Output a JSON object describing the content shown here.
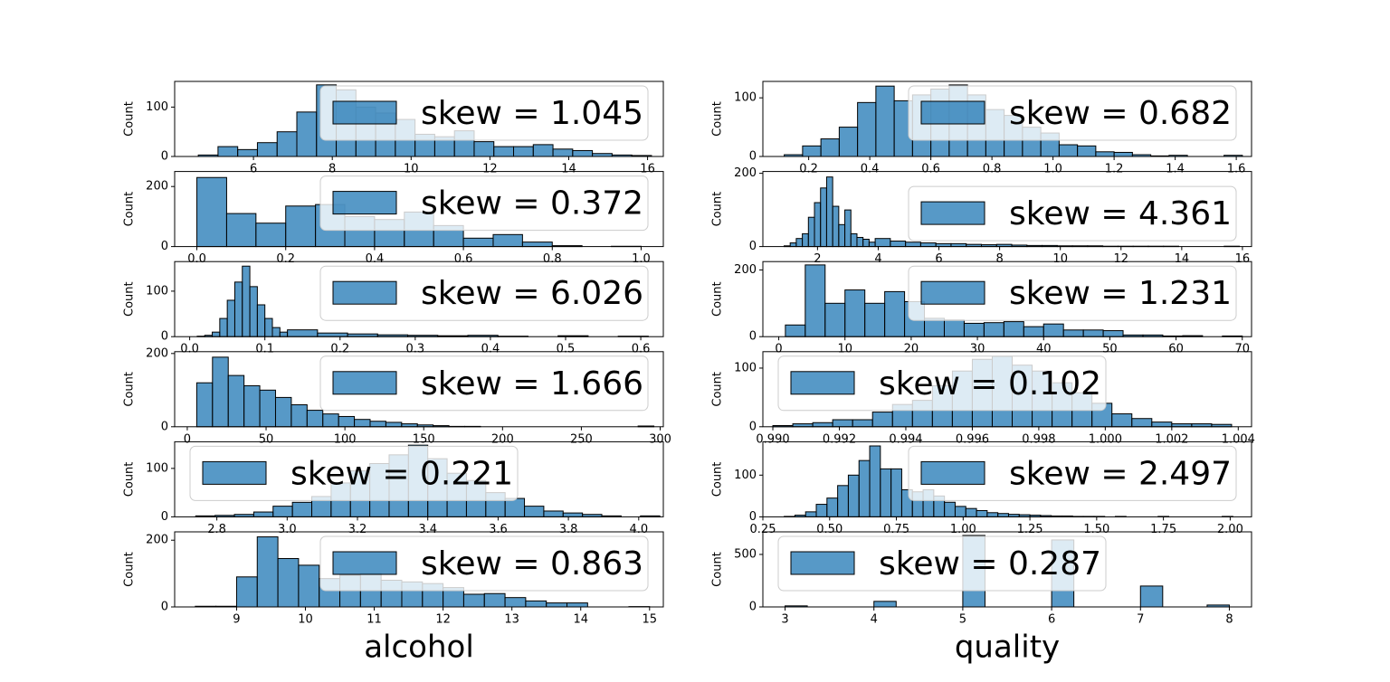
{
  "chart_data": [
    {
      "type": "histogram",
      "ylabel": "Count",
      "label": "skew = 1.045",
      "legend_loc": "upper right",
      "color": "#1f77b4",
      "bins": [
        4.6,
        5.1,
        5.6,
        6.1,
        6.6,
        7.1,
        7.6,
        8.1,
        8.6,
        9.1,
        9.6,
        10.1,
        10.6,
        11.1,
        11.6,
        12.1,
        12.6,
        13.1,
        13.6,
        14.1,
        14.6,
        15.1,
        15.6,
        16.1
      ],
      "counts": [
        3,
        20,
        14,
        28,
        50,
        90,
        145,
        135,
        100,
        88,
        75,
        45,
        40,
        52,
        30,
        20,
        20,
        24,
        15,
        12,
        6,
        3,
        2
      ],
      "xlim": [
        4.0,
        16.4
      ],
      "xticks": [
        6,
        8,
        10,
        12,
        14,
        16
      ],
      "ylim": [
        0,
        152
      ],
      "yticks": [
        0,
        100
      ]
    },
    {
      "type": "histogram",
      "ylabel": "Count",
      "label": "skew = 0.372",
      "legend_loc": "upper right",
      "color": "#1f77b4",
      "bins": [
        0,
        0.067,
        0.133,
        0.2,
        0.267,
        0.333,
        0.4,
        0.467,
        0.533,
        0.6,
        0.667,
        0.733,
        0.8,
        0.867,
        0.933,
        1.0
      ],
      "counts": [
        230,
        110,
        78,
        135,
        140,
        100,
        90,
        115,
        70,
        28,
        40,
        15,
        3,
        0,
        1
      ],
      "xlim": [
        -0.05,
        1.05
      ],
      "xticks": [
        {
          "value": 0,
          "label": "0.0"
        },
        0.2,
        0.4,
        0.6,
        0.8,
        {
          "value": 1,
          "label": "1.0"
        }
      ],
      "ylim": [
        0,
        250
      ],
      "yticks": [
        0,
        200
      ]
    },
    {
      "type": "histogram",
      "ylabel": "Count",
      "label": "skew = 6.026",
      "legend_loc": "upper right",
      "color": "#1f77b4",
      "bins": [
        0.01,
        0.02,
        0.03,
        0.04,
        0.05,
        0.06,
        0.07,
        0.08,
        0.09,
        0.1,
        0.11,
        0.12,
        0.13,
        0.17,
        0.21,
        0.25,
        0.29,
        0.33,
        0.37,
        0.41,
        0.45,
        0.49,
        0.53,
        0.57,
        0.61
      ],
      "counts": [
        1,
        3,
        10,
        40,
        80,
        120,
        155,
        110,
        70,
        40,
        20,
        10,
        15,
        8,
        6,
        4,
        3,
        2,
        3,
        1,
        0,
        2,
        0,
        1
      ],
      "xlim": [
        -0.02,
        0.63
      ],
      "xticks": [
        {
          "value": 0,
          "label": "0.0"
        },
        0.1,
        0.2,
        0.3,
        0.4,
        0.5,
        0.6
      ],
      "ylim": [
        0,
        165
      ],
      "yticks": [
        0,
        100
      ]
    },
    {
      "type": "histogram",
      "ylabel": "Count",
      "label": "skew = 1.666",
      "legend_loc": "upper right",
      "color": "#1f77b4",
      "bins": [
        6,
        16,
        26,
        36,
        46,
        56,
        66,
        76,
        86,
        96,
        106,
        116,
        126,
        136,
        146,
        156,
        166,
        176,
        186,
        196,
        206,
        216,
        226,
        236,
        246,
        256,
        266,
        276,
        286,
        296
      ],
      "counts": [
        120,
        190,
        140,
        112,
        100,
        80,
        60,
        45,
        35,
        28,
        20,
        15,
        12,
        8,
        5,
        3,
        1,
        1,
        0,
        0,
        0,
        0,
        0,
        0,
        0,
        0,
        0,
        0,
        2
      ],
      "xlim": [
        -8,
        302
      ],
      "xticks": [
        0,
        50,
        100,
        150,
        200,
        250,
        300
      ],
      "ylim": [
        0,
        205
      ],
      "yticks": [
        0,
        200
      ]
    },
    {
      "type": "histogram",
      "ylabel": "Count",
      "label": "skew = 0.221",
      "legend_loc": "upper left",
      "color": "#1f77b4",
      "bins": [
        2.74,
        2.795,
        2.85,
        2.905,
        2.96,
        3.015,
        3.07,
        3.125,
        3.18,
        3.235,
        3.29,
        3.345,
        3.4,
        3.455,
        3.51,
        3.565,
        3.62,
        3.675,
        3.73,
        3.785,
        3.84,
        3.895,
        3.95,
        4.005,
        4.06
      ],
      "counts": [
        2,
        3,
        5,
        10,
        22,
        30,
        42,
        70,
        95,
        110,
        128,
        148,
        120,
        90,
        75,
        50,
        38,
        22,
        12,
        8,
        5,
        2,
        0,
        2
      ],
      "xlim": [
        2.68,
        4.07
      ],
      "xticks": [
        2.8,
        {
          "value": 3,
          "label": "3.0"
        },
        3.2,
        3.4,
        3.6,
        3.8,
        {
          "value": 4,
          "label": "4.0"
        }
      ],
      "ylim": [
        0,
        155
      ],
      "yticks": [
        0,
        100
      ]
    },
    {
      "type": "histogram",
      "ylabel": "Count",
      "label": "skew = 0.863",
      "legend_loc": "upper right",
      "color": "#1f77b4",
      "xlabel": "alcohol",
      "bins": [
        8.4,
        8.7,
        9.0,
        9.3,
        9.6,
        9.9,
        10.2,
        10.5,
        10.8,
        11.1,
        11.4,
        11.7,
        12.0,
        12.3,
        12.6,
        12.9,
        13.2,
        13.5,
        13.8,
        14.1,
        14.4,
        14.7,
        15.0
      ],
      "counts": [
        2,
        2,
        90,
        210,
        145,
        125,
        85,
        95,
        100,
        80,
        75,
        70,
        58,
        38,
        40,
        28,
        18,
        12,
        12,
        0,
        0,
        1
      ],
      "xlim": [
        8.1,
        15.2
      ],
      "xticks": [
        9,
        10,
        11,
        12,
        13,
        14,
        15
      ],
      "ylim": [
        0,
        225
      ],
      "yticks": [
        0,
        200
      ]
    },
    {
      "type": "histogram",
      "ylabel": "Count",
      "label": "skew = 0.682",
      "legend_loc": "upper right",
      "color": "#1f77b4",
      "bins": [
        0.12,
        0.18,
        0.24,
        0.3,
        0.36,
        0.42,
        0.48,
        0.54,
        0.6,
        0.66,
        0.72,
        0.78,
        0.84,
        0.9,
        0.96,
        1.02,
        1.08,
        1.14,
        1.2,
        1.26,
        1.32,
        1.38,
        1.44,
        1.5,
        1.56,
        1.62
      ],
      "counts": [
        3,
        18,
        30,
        50,
        92,
        120,
        95,
        105,
        115,
        122,
        105,
        80,
        70,
        50,
        40,
        20,
        18,
        8,
        7,
        3,
        1,
        2,
        0,
        0,
        2
      ],
      "xlim": [
        0.05,
        1.65
      ],
      "xticks": [
        0.2,
        0.4,
        0.6,
        0.8,
        {
          "value": 1,
          "label": "1.0"
        },
        1.2,
        1.4,
        1.6
      ],
      "ylim": [
        0,
        128
      ],
      "yticks": [
        0,
        100
      ]
    },
    {
      "type": "histogram",
      "ylabel": "Count",
      "label": "skew = 4.361",
      "legend_loc": "right",
      "color": "#1f77b4",
      "bins": [
        0.9,
        1.1,
        1.3,
        1.5,
        1.7,
        1.9,
        2.1,
        2.3,
        2.5,
        2.7,
        2.9,
        3.1,
        3.3,
        3.5,
        3.7,
        3.9,
        4.4,
        4.9,
        5.4,
        5.9,
        6.4,
        6.9,
        7.4,
        7.9,
        8.4,
        8.9,
        9.4,
        9.9,
        10.4,
        10.9,
        11.4,
        11.9,
        12.4,
        12.9,
        13.4,
        13.9,
        14.4,
        14.9,
        15.4,
        15.9
      ],
      "counts": [
        2,
        10,
        22,
        35,
        80,
        120,
        160,
        190,
        110,
        60,
        100,
        35,
        25,
        20,
        12,
        22,
        15,
        12,
        10,
        8,
        8,
        6,
        5,
        6,
        4,
        3,
        3,
        2,
        2,
        2,
        1,
        1,
        1,
        1,
        1,
        0,
        0,
        0,
        1
      ],
      "xlim": [
        0.2,
        16.3
      ],
      "xticks": [
        2,
        4,
        6,
        8,
        10,
        12,
        14,
        16
      ],
      "ylim": [
        0,
        205
      ],
      "yticks": [
        0,
        200
      ]
    },
    {
      "type": "histogram",
      "ylabel": "Count",
      "label": "skew = 1.231",
      "legend_loc": "upper right",
      "color": "#1f77b4",
      "bins": [
        1,
        4,
        7,
        10,
        13,
        16,
        19,
        22,
        25,
        28,
        31,
        34,
        37,
        40,
        43,
        46,
        49,
        52,
        55,
        58,
        61,
        64,
        67,
        70
      ],
      "counts": [
        35,
        215,
        100,
        140,
        100,
        135,
        105,
        55,
        50,
        40,
        42,
        45,
        30,
        38,
        20,
        20,
        18,
        5,
        5,
        2,
        3,
        0,
        2
      ],
      "xlim": [
        -2.4,
        71.4
      ],
      "xticks": [
        0,
        10,
        20,
        30,
        40,
        50,
        60,
        70
      ],
      "ylim": [
        0,
        225
      ],
      "yticks": [
        0,
        200
      ]
    },
    {
      "type": "histogram",
      "ylabel": "Count",
      "label": "skew = 0.102",
      "legend_loc": "upper left",
      "color": "#1f77b4",
      "bins": [
        0.99,
        0.9906,
        0.9912,
        0.9918,
        0.9924,
        0.993,
        0.9936,
        0.9942,
        0.9948,
        0.9954,
        0.996,
        0.9966,
        0.9972,
        0.9978,
        0.9984,
        0.999,
        0.9996,
        1.0002,
        1.0008,
        1.0014,
        1.002,
        1.0026,
        1.0032,
        1.0038
      ],
      "counts": [
        2,
        5,
        7,
        12,
        12,
        25,
        38,
        45,
        70,
        95,
        115,
        120,
        105,
        95,
        75,
        58,
        40,
        22,
        14,
        8,
        5,
        5,
        4
      ],
      "xlim": [
        0.9897,
        1.0044
      ],
      "xticks": [
        {
          "value": 0.99,
          "label": "0.990"
        },
        0.992,
        0.994,
        0.996,
        0.998,
        {
          "value": 1,
          "label": "1.000"
        },
        1.002,
        1.004
      ],
      "ylim": [
        0,
        128
      ],
      "yticks": [
        0,
        100
      ]
    },
    {
      "type": "histogram",
      "ylabel": "Count",
      "label": "skew = 2.497",
      "legend_loc": "upper right",
      "color": "#1f77b4",
      "bins": [
        0.33,
        0.37,
        0.41,
        0.45,
        0.49,
        0.53,
        0.57,
        0.61,
        0.65,
        0.69,
        0.73,
        0.77,
        0.81,
        0.85,
        0.89,
        0.93,
        0.97,
        1.01,
        1.05,
        1.09,
        1.13,
        1.17,
        1.21,
        1.25,
        1.29,
        1.33,
        1.37,
        1.41,
        1.45,
        1.49,
        1.53,
        1.57,
        1.61,
        1.65,
        1.69,
        1.73,
        1.77,
        1.81,
        1.85,
        1.89,
        1.93,
        1.97,
        2.01
      ],
      "counts": [
        1,
        4,
        12,
        30,
        45,
        75,
        100,
        135,
        170,
        115,
        115,
        65,
        60,
        65,
        50,
        35,
        25,
        20,
        15,
        10,
        8,
        6,
        5,
        4,
        3,
        2,
        2,
        1,
        1,
        1,
        0,
        1,
        0,
        0,
        0,
        1,
        0,
        0,
        0,
        0,
        0,
        1
      ],
      "xlim": [
        0.25,
        2.08
      ],
      "xticks": [
        0.25,
        {
          "value": 0.5,
          "label": "0.50"
        },
        0.75,
        {
          "value": 1,
          "label": "1.00"
        },
        1.25,
        {
          "value": 1.5,
          "label": "1.50"
        },
        1.75,
        {
          "value": 2,
          "label": "2.00"
        }
      ],
      "ylim": [
        0,
        180
      ],
      "yticks": [
        0,
        100
      ]
    },
    {
      "type": "histogram",
      "ylabel": "Count",
      "label": "skew = 0.287",
      "legend_loc": "upper left",
      "color": "#1f77b4",
      "xlabel": "quality",
      "bins": [
        3,
        3.25,
        3.5,
        3.75,
        4,
        4.25,
        4.5,
        4.75,
        5,
        5.25,
        5.5,
        5.75,
        6,
        6.25,
        6.5,
        6.75,
        7,
        7.25,
        7.5,
        7.75,
        8
      ],
      "counts": [
        10,
        0,
        0,
        0,
        53,
        0,
        0,
        0,
        681,
        0,
        0,
        0,
        638,
        0,
        0,
        0,
        199,
        0,
        0,
        18
      ],
      "xlim": [
        2.75,
        8.25
      ],
      "xticks": [
        3,
        4,
        5,
        6,
        7,
        8
      ],
      "ylim": [
        0,
        715
      ],
      "yticks": [
        0,
        500
      ]
    }
  ]
}
